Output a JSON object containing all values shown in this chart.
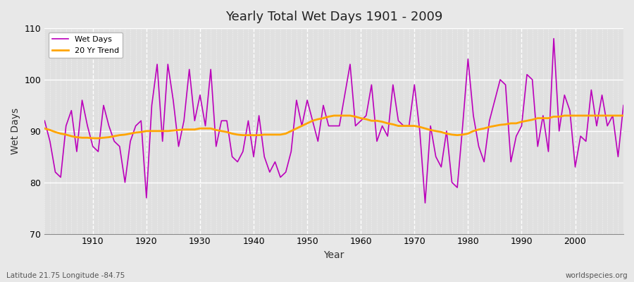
{
  "title": "Yearly Total Wet Days 1901 - 2009",
  "xlabel": "Year",
  "ylabel": "Wet Days",
  "subtitle_left": "Latitude 21.75 Longitude -84.75",
  "subtitle_right": "worldspecies.org",
  "ylim": [
    70,
    110
  ],
  "xlim": [
    1901,
    2009
  ],
  "yticks": [
    70,
    80,
    90,
    100,
    110
  ],
  "xticks": [
    1910,
    1920,
    1930,
    1940,
    1950,
    1960,
    1970,
    1980,
    1990,
    2000
  ],
  "wet_days_color": "#bb00bb",
  "trend_color": "#ffa500",
  "bg_color": "#e8e8e8",
  "plot_bg_color": "#e0e0e0",
  "wet_days": {
    "1901": 92,
    "1902": 88,
    "1903": 82,
    "1904": 81,
    "1905": 91,
    "1906": 94,
    "1907": 86,
    "1908": 96,
    "1909": 91,
    "1910": 87,
    "1911": 86,
    "1912": 95,
    "1913": 91,
    "1914": 88,
    "1915": 87,
    "1916": 80,
    "1917": 88,
    "1918": 91,
    "1919": 92,
    "1920": 77,
    "1921": 95,
    "1922": 103,
    "1923": 88,
    "1924": 103,
    "1925": 96,
    "1926": 87,
    "1927": 92,
    "1928": 102,
    "1929": 92,
    "1930": 97,
    "1931": 91,
    "1932": 102,
    "1933": 87,
    "1934": 92,
    "1935": 92,
    "1936": 85,
    "1937": 84,
    "1938": 86,
    "1939": 92,
    "1940": 85,
    "1941": 93,
    "1942": 85,
    "1943": 82,
    "1944": 84,
    "1945": 81,
    "1946": 82,
    "1947": 86,
    "1948": 96,
    "1949": 91,
    "1950": 96,
    "1951": 92,
    "1952": 88,
    "1953": 95,
    "1954": 91,
    "1955": 91,
    "1956": 91,
    "1957": 97,
    "1958": 103,
    "1959": 91,
    "1960": 92,
    "1961": 93,
    "1962": 99,
    "1963": 88,
    "1964": 91,
    "1965": 89,
    "1966": 99,
    "1967": 92,
    "1968": 91,
    "1969": 91,
    "1970": 99,
    "1971": 90,
    "1972": 76,
    "1973": 91,
    "1974": 85,
    "1975": 83,
    "1976": 90,
    "1977": 80,
    "1978": 79,
    "1979": 91,
    "1980": 104,
    "1981": 93,
    "1982": 87,
    "1983": 84,
    "1984": 92,
    "1985": 96,
    "1986": 100,
    "1987": 99,
    "1988": 84,
    "1989": 89,
    "1990": 91,
    "1991": 101,
    "1992": 100,
    "1993": 87,
    "1994": 93,
    "1995": 86,
    "1996": 108,
    "1997": 90,
    "1998": 97,
    "1999": 94,
    "2000": 83,
    "2001": 89,
    "2002": 88,
    "2003": 98,
    "2004": 91,
    "2005": 97,
    "2006": 91,
    "2007": 93,
    "2008": 85,
    "2009": 95
  },
  "trend": {
    "1901": 90.5,
    "1902": 90.2,
    "1903": 89.8,
    "1904": 89.5,
    "1905": 89.3,
    "1906": 89.0,
    "1907": 88.8,
    "1908": 88.7,
    "1909": 88.7,
    "1910": 88.6,
    "1911": 88.6,
    "1912": 88.7,
    "1913": 88.8,
    "1914": 89.0,
    "1915": 89.2,
    "1916": 89.3,
    "1917": 89.5,
    "1918": 89.7,
    "1919": 89.8,
    "1920": 90.0,
    "1921": 90.0,
    "1922": 90.0,
    "1923": 90.0,
    "1924": 90.0,
    "1925": 90.1,
    "1926": 90.2,
    "1927": 90.3,
    "1928": 90.3,
    "1929": 90.3,
    "1930": 90.5,
    "1931": 90.5,
    "1932": 90.5,
    "1933": 90.2,
    "1934": 90.0,
    "1935": 89.8,
    "1936": 89.5,
    "1937": 89.3,
    "1938": 89.2,
    "1939": 89.2,
    "1940": 89.2,
    "1941": 89.2,
    "1942": 89.3,
    "1943": 89.3,
    "1944": 89.3,
    "1945": 89.3,
    "1946": 89.5,
    "1947": 90.0,
    "1948": 90.5,
    "1949": 91.0,
    "1950": 91.5,
    "1951": 92.0,
    "1952": 92.3,
    "1953": 92.5,
    "1954": 92.8,
    "1955": 93.0,
    "1956": 93.0,
    "1957": 93.0,
    "1958": 93.0,
    "1959": 92.8,
    "1960": 92.5,
    "1961": 92.3,
    "1962": 92.0,
    "1963": 92.0,
    "1964": 91.8,
    "1965": 91.5,
    "1966": 91.3,
    "1967": 91.0,
    "1968": 91.0,
    "1969": 91.0,
    "1970": 91.0,
    "1971": 90.8,
    "1972": 90.5,
    "1973": 90.2,
    "1974": 90.0,
    "1975": 89.8,
    "1976": 89.5,
    "1977": 89.3,
    "1978": 89.2,
    "1979": 89.3,
    "1980": 89.5,
    "1981": 90.0,
    "1982": 90.3,
    "1983": 90.5,
    "1984": 90.8,
    "1985": 91.0,
    "1986": 91.2,
    "1987": 91.3,
    "1988": 91.5,
    "1989": 91.5,
    "1990": 91.8,
    "1991": 92.0,
    "1992": 92.2,
    "1993": 92.5,
    "1994": 92.5,
    "1995": 92.5,
    "1996": 92.8,
    "1997": 92.8,
    "1998": 93.0,
    "1999": 93.0,
    "2000": 93.0,
    "2001": 93.0,
    "2002": 93.0,
    "2003": 93.0,
    "2004": 93.0,
    "2005": 93.0,
    "2006": 93.0,
    "2007": 93.0,
    "2008": 93.0,
    "2009": 93.0
  }
}
